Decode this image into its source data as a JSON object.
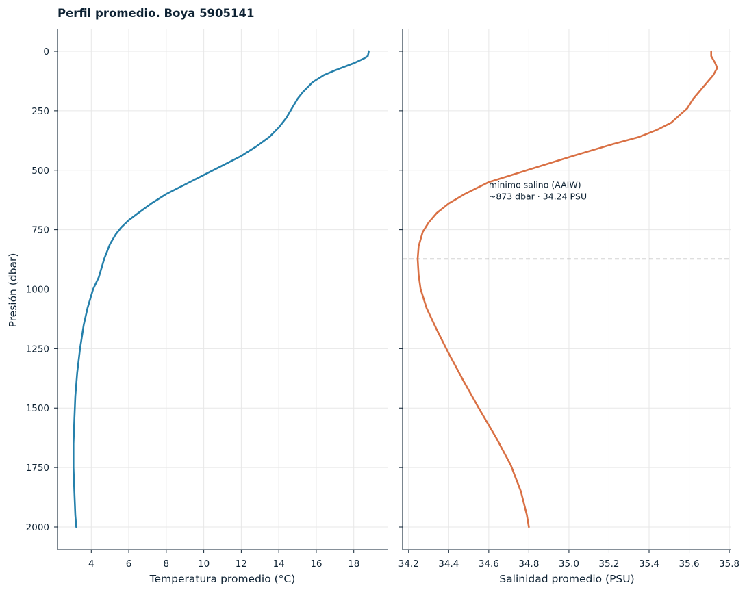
{
  "title": "Perfil promedio. Boya 5905141",
  "chart_data": [
    {
      "type": "line",
      "xlabel": "Temperatura promedio (°C)",
      "ylabel": "Presión (dbar)",
      "xlim": [
        2.2,
        19.8
      ],
      "ylim": [
        2095,
        -95
      ],
      "y_inverted": true,
      "xticks": [
        4,
        6,
        8,
        10,
        12,
        14,
        16,
        18
      ],
      "yticks": [
        0,
        250,
        500,
        750,
        1000,
        1250,
        1500,
        1750,
        2000
      ],
      "grid": true,
      "color": "#2580ab",
      "series": [
        {
          "x": [
            18.8,
            18.75,
            18.55,
            18.0,
            17.0,
            16.4,
            15.8,
            15.3,
            15.0,
            14.7,
            14.4,
            14.0,
            13.5,
            12.8,
            12.0,
            11.0,
            10.0,
            9.0,
            8.0,
            7.2,
            6.5,
            6.0,
            5.6,
            5.3,
            5.0,
            4.7,
            4.4,
            4.1,
            3.8,
            3.6,
            3.4,
            3.25,
            3.15,
            3.1,
            3.05,
            3.05,
            3.1,
            3.15,
            3.2
          ],
          "y": [
            0,
            20,
            30,
            50,
            80,
            100,
            130,
            170,
            200,
            240,
            280,
            320,
            360,
            400,
            440,
            480,
            520,
            560,
            600,
            640,
            680,
            710,
            740,
            770,
            810,
            870,
            950,
            1000,
            1080,
            1150,
            1250,
            1350,
            1450,
            1550,
            1650,
            1750,
            1850,
            1950,
            2000
          ]
        }
      ]
    },
    {
      "type": "line",
      "xlabel": "Salinidad promedio (PSU)",
      "ylabel": "",
      "xlim": [
        34.17,
        35.81
      ],
      "ylim": [
        2095,
        -95
      ],
      "y_inverted": true,
      "xticks": [
        34.2,
        34.4,
        34.6,
        34.8,
        35.0,
        35.2,
        35.4,
        35.6,
        35.8
      ],
      "xtick_labels": [
        "34.2",
        "34.4",
        "34.6",
        "34.8",
        "35.0",
        "35.2",
        "35.4",
        "35.6",
        "35.8"
      ],
      "yticks": [
        0,
        250,
        500,
        750,
        1000,
        1250,
        1500,
        1750,
        2000
      ],
      "grid": true,
      "color": "#d97044",
      "series": [
        {
          "x": [
            35.71,
            35.71,
            35.73,
            35.74,
            35.72,
            35.69,
            35.66,
            35.62,
            35.59,
            35.55,
            35.51,
            35.44,
            35.35,
            35.22,
            35.02,
            34.79,
            34.6,
            34.48,
            34.4,
            34.34,
            34.3,
            34.27,
            34.25,
            34.245,
            34.25,
            34.26,
            34.29,
            34.34,
            34.4,
            34.47,
            34.55,
            34.64,
            34.71,
            34.76,
            34.79,
            34.8
          ],
          "y": [
            0,
            20,
            50,
            70,
            100,
            130,
            160,
            200,
            240,
            270,
            300,
            330,
            360,
            390,
            440,
            500,
            550,
            600,
            640,
            680,
            720,
            760,
            820,
            873,
            940,
            1000,
            1080,
            1170,
            1270,
            1380,
            1500,
            1630,
            1740,
            1850,
            1950,
            2000
          ]
        }
      ],
      "reference_line": {
        "y": 873,
        "style": "dashed",
        "color": "#a6a6a6"
      },
      "annotation": {
        "x": 34.6,
        "y": 560,
        "lines": [
          "mínimo salino (AAIW)",
          "~873 dbar · 34.24 PSU"
        ]
      }
    }
  ]
}
